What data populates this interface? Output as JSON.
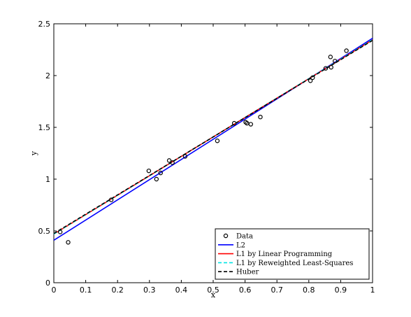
{
  "chart_data": {
    "type": "scatter",
    "title": "",
    "xlabel": "x",
    "ylabel": "y",
    "xlim": [
      0,
      1
    ],
    "ylim": [
      0,
      2.5
    ],
    "xticks": [
      "0",
      "0.1",
      "0.2",
      "0.3",
      "0.4",
      "0.5",
      "0.6",
      "0.7",
      "0.8",
      "0.9",
      "1"
    ],
    "yticks": [
      "0",
      "0.5",
      "1",
      "1.5",
      "2",
      "2.5"
    ],
    "grid": false,
    "legend_position": "bottom-right",
    "points": {
      "name": "Data",
      "x": [
        0.02,
        0.045,
        0.18,
        0.298,
        0.322,
        0.335,
        0.362,
        0.372,
        0.412,
        0.513,
        0.566,
        0.602,
        0.606,
        0.618,
        0.648,
        0.805,
        0.812,
        0.853,
        0.868,
        0.87,
        0.882,
        0.918
      ],
      "y": [
        0.49,
        0.39,
        0.8,
        1.08,
        1.0,
        1.06,
        1.18,
        1.16,
        1.22,
        1.37,
        1.54,
        1.55,
        1.54,
        1.53,
        1.6,
        1.95,
        1.98,
        2.07,
        2.18,
        2.08,
        2.14,
        2.24
      ]
    },
    "series": [
      {
        "name": "L2",
        "color": "#0000ff",
        "dash": "solid",
        "x": [
          0,
          1
        ],
        "y": [
          0.41,
          2.36
        ]
      },
      {
        "name": "L1 by Linear Programming",
        "color": "#ff0000",
        "dash": "solid",
        "x": [
          0,
          1
        ],
        "y": [
          0.47,
          2.345
        ]
      },
      {
        "name": "L1 by Reweighted Least-Squares",
        "color": "#00e5e5",
        "dash": "dashed",
        "x": [
          0,
          1
        ],
        "y": [
          0.47,
          2.345
        ]
      },
      {
        "name": "Huber",
        "color": "#000000",
        "dash": "dashed",
        "x": [
          0,
          1
        ],
        "y": [
          0.475,
          2.34
        ]
      }
    ]
  }
}
